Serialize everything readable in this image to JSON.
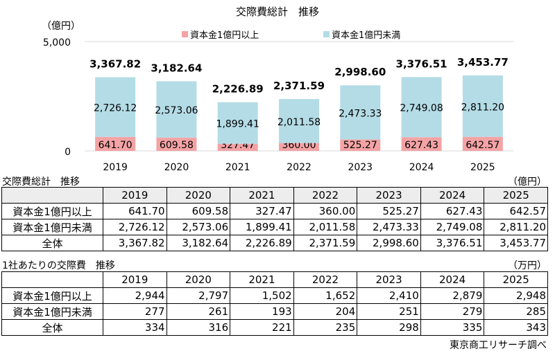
{
  "chart_data": {
    "type": "bar",
    "stacked": true,
    "title": "交際費総計　推移",
    "ylabel": "（億円）",
    "ylim": [
      0,
      5000
    ],
    "yticks": [
      "0",
      "5,000"
    ],
    "categories": [
      "2019",
      "2020",
      "2021",
      "2022",
      "2023",
      "2024",
      "2025"
    ],
    "legend_position": "top",
    "series": [
      {
        "name": "資本金1億円以上",
        "color": "#f4a3a5",
        "values": [
          641.7,
          609.58,
          327.47,
          360.0,
          525.27,
          627.43,
          642.57
        ],
        "labels": [
          "641.70",
          "609.58",
          "327.47",
          "360.00",
          "525.27",
          "627.43",
          "642.57"
        ]
      },
      {
        "name": "資本金1億円未満",
        "color": "#b4dce6",
        "values": [
          2726.12,
          2573.06,
          1899.41,
          2011.58,
          2473.33,
          2749.08,
          2811.2
        ],
        "labels": [
          "2,726.12",
          "2,573.06",
          "1,899.41",
          "2,011.58",
          "2,473.33",
          "2,749.08",
          "2,811.20"
        ]
      }
    ],
    "totals": [
      3367.82,
      3182.64,
      2226.89,
      2371.59,
      2998.6,
      3376.51,
      3453.77
    ],
    "total_labels": [
      "3,367.82",
      "3,182.64",
      "2,226.89",
      "2,371.59",
      "2,998.60",
      "3,376.51",
      "3,453.77"
    ]
  },
  "table1": {
    "title": "交際費総計　推移",
    "unit": "（億円）",
    "years": [
      "2019",
      "2020",
      "2021",
      "2022",
      "2023",
      "2024",
      "2025"
    ],
    "rows": [
      {
        "label": "資本金1億円以上",
        "values": [
          "641.70",
          "609.58",
          "327.47",
          "360.00",
          "525.27",
          "627.43",
          "642.57"
        ]
      },
      {
        "label": "資本金1億円未満",
        "values": [
          "2,726.12",
          "2,573.06",
          "1,899.41",
          "2,011.58",
          "2,473.33",
          "2,749.08",
          "2,811.20"
        ]
      },
      {
        "label": "全体",
        "values": [
          "3,367.82",
          "3,182.64",
          "2,226.89",
          "2,371.59",
          "2,998.60",
          "3,376.51",
          "3,453.77"
        ]
      }
    ]
  },
  "table2": {
    "title": "1社あたりの交際費　推移",
    "unit": "（万円）",
    "years": [
      "2019",
      "2020",
      "2021",
      "2022",
      "2023",
      "2024",
      "2025"
    ],
    "rows": [
      {
        "label": "資本金1億円以上",
        "values": [
          "2,944",
          "2,797",
          "1,502",
          "1,652",
          "2,410",
          "2,879",
          "2,948"
        ]
      },
      {
        "label": "資本金1億円未満",
        "values": [
          "277",
          "261",
          "193",
          "204",
          "251",
          "279",
          "285"
        ]
      },
      {
        "label": "全体",
        "values": [
          "334",
          "316",
          "221",
          "235",
          "298",
          "335",
          "343"
        ]
      }
    ]
  },
  "source": "東京商工リサーチ調べ"
}
